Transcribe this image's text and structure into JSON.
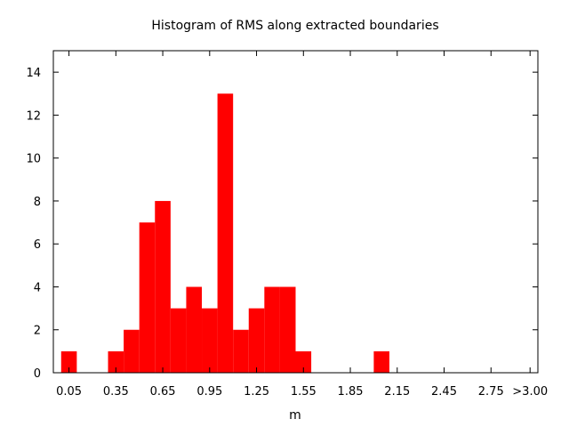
{
  "chart_data": {
    "type": "bar",
    "title": "Histogram of RMS along extracted boundaries",
    "xlabel": "m",
    "ylabel": "",
    "bin_width": 0.1,
    "bin_centers": [
      0.05,
      0.15,
      0.25,
      0.35,
      0.45,
      0.55,
      0.65,
      0.75,
      0.85,
      0.95,
      1.05,
      1.15,
      1.25,
      1.35,
      1.45,
      1.55,
      1.65,
      1.75,
      1.85,
      1.95,
      2.05,
      2.15,
      2.25,
      2.35,
      2.45,
      2.55,
      2.65,
      2.75,
      2.85,
      2.95,
      3.05
    ],
    "values": [
      1,
      0,
      0,
      1,
      2,
      7,
      8,
      3,
      4,
      3,
      13,
      2,
      3,
      4,
      4,
      1,
      0,
      0,
      0,
      0,
      1,
      0,
      0,
      0,
      0,
      0,
      0,
      0,
      0,
      0,
      0
    ],
    "xlim": [
      -0.05,
      3.05
    ],
    "ylim": [
      0,
      15
    ],
    "x_ticks": [
      {
        "value": 0.05,
        "label": "0.05"
      },
      {
        "value": 0.35,
        "label": "0.35"
      },
      {
        "value": 0.65,
        "label": "0.65"
      },
      {
        "value": 0.95,
        "label": "0.95"
      },
      {
        "value": 1.25,
        "label": "1.25"
      },
      {
        "value": 1.55,
        "label": "1.55"
      },
      {
        "value": 1.85,
        "label": "1.85"
      },
      {
        "value": 2.15,
        "label": "2.15"
      },
      {
        "value": 2.45,
        "label": "2.45"
      },
      {
        "value": 2.75,
        "label": "2.75"
      },
      {
        "value": 3.0,
        "label": ">3.00"
      }
    ],
    "y_ticks": [
      0,
      2,
      4,
      6,
      8,
      10,
      12,
      14
    ],
    "grid": false,
    "legend": "none",
    "bar_color": "#ff0000"
  }
}
